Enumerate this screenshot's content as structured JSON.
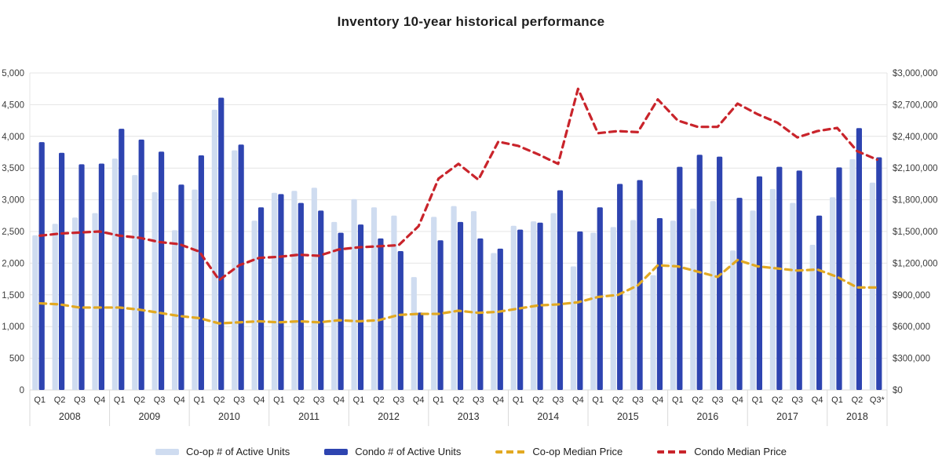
{
  "title": "Inventory 10-year historical performance",
  "legend": [
    {
      "label": "Co-op # of Active Units",
      "type": "bar",
      "color": "#cfdcf0"
    },
    {
      "label": "Condo # of Active Units",
      "type": "bar",
      "color": "#2e44b0"
    },
    {
      "label": "Co-op Median Price",
      "type": "line",
      "color": "#e2a922"
    },
    {
      "label": "Condo Median Price",
      "type": "line",
      "color": "#c9242b"
    }
  ],
  "chart_data": {
    "type": "bar",
    "title": "Inventory 10-year historical performance",
    "grid": true,
    "legend_position": "bottom",
    "years": [
      "2008",
      "2009",
      "2010",
      "2011",
      "2012",
      "2013",
      "2014",
      "2015",
      "2016",
      "2017",
      "2018"
    ],
    "quarters_per_year": [
      4,
      4,
      4,
      4,
      4,
      4,
      4,
      4,
      4,
      4,
      3
    ],
    "quarter_labels": [
      "Q1",
      "Q2",
      "Q3",
      "Q4",
      "Q1",
      "Q2",
      "Q3",
      "Q4",
      "Q1",
      "Q2",
      "Q3",
      "Q4",
      "Q1",
      "Q2",
      "Q3",
      "Q4",
      "Q1",
      "Q2",
      "Q3",
      "Q4",
      "Q1",
      "Q2",
      "Q3",
      "Q4",
      "Q1",
      "Q2",
      "Q3",
      "Q4",
      "Q1",
      "Q2",
      "Q3",
      "Q4",
      "Q1",
      "Q2",
      "Q3",
      "Q4",
      "Q1",
      "Q2",
      "Q3",
      "Q4",
      "Q1",
      "Q2",
      "Q3*"
    ],
    "left_axis": {
      "label": "",
      "min": 0,
      "max": 5000,
      "step": 500,
      "tick_labels": [
        "0",
        "500",
        "1,000",
        "1,500",
        "2,000",
        "2,500",
        "3,000",
        "3,500",
        "4,000",
        "4,500",
        "5,000"
      ]
    },
    "right_axis": {
      "label": "",
      "min": 0,
      "max": 3000000,
      "step": 300000,
      "tick_labels": [
        "$0",
        "$300,000",
        "$600,000",
        "$900,000",
        "$1,200,000",
        "$1,500,000",
        "$1,800,000",
        "$2,100,000",
        "$2,400,000",
        "$2,700,000",
        "$3,000,000"
      ]
    },
    "series": [
      {
        "name": "Co-op # of Active Units",
        "type": "bar",
        "axis": "left",
        "color": "#cfdcf0",
        "values": [
          2440,
          2620,
          2720,
          2790,
          3650,
          3390,
          3120,
          2520,
          3160,
          4420,
          3780,
          2670,
          3110,
          3140,
          3190,
          2650,
          3010,
          2880,
          2750,
          1780,
          2730,
          2900,
          2820,
          2160,
          2590,
          2660,
          2790,
          1950,
          2480,
          2570,
          2680,
          1810,
          2670,
          2860,
          2980,
          2200,
          2830,
          3170,
          2950,
          2290,
          3040,
          3640,
          3270
        ]
      },
      {
        "name": "Condo # of Active Units",
        "type": "bar",
        "axis": "left",
        "color": "#2e44b0",
        "values": [
          3910,
          3740,
          3560,
          3570,
          4120,
          3950,
          3760,
          3240,
          3700,
          4610,
          3870,
          2880,
          3090,
          2950,
          2830,
          2480,
          2610,
          2390,
          2190,
          1220,
          2360,
          2650,
          2390,
          2230,
          2530,
          2640,
          3150,
          2500,
          2880,
          3250,
          3310,
          2710,
          3520,
          3710,
          3680,
          3030,
          3370,
          3520,
          3460,
          2750,
          3510,
          4130,
          3670
        ]
      },
      {
        "name": "Co-op Median Price",
        "type": "line",
        "dashed": true,
        "axis": "right",
        "color": "#e2a922",
        "values": [
          820000,
          810000,
          780000,
          780000,
          780000,
          760000,
          730000,
          700000,
          680000,
          630000,
          640000,
          650000,
          640000,
          650000,
          640000,
          660000,
          650000,
          660000,
          710000,
          720000,
          720000,
          750000,
          730000,
          740000,
          770000,
          800000,
          810000,
          830000,
          880000,
          900000,
          990000,
          1180000,
          1170000,
          1120000,
          1070000,
          1230000,
          1170000,
          1150000,
          1130000,
          1140000,
          1070000,
          970000,
          970000
        ]
      },
      {
        "name": "Condo Median Price",
        "type": "line",
        "dashed": true,
        "axis": "right",
        "color": "#c9242b",
        "values": [
          1460000,
          1480000,
          1490000,
          1500000,
          1460000,
          1440000,
          1400000,
          1380000,
          1310000,
          1040000,
          1180000,
          1250000,
          1260000,
          1280000,
          1270000,
          1330000,
          1350000,
          1360000,
          1370000,
          1550000,
          2000000,
          2140000,
          1990000,
          2350000,
          2310000,
          2230000,
          2140000,
          2850000,
          2430000,
          2450000,
          2440000,
          2750000,
          2550000,
          2490000,
          2490000,
          2710000,
          2610000,
          2530000,
          2390000,
          2450000,
          2480000,
          2260000,
          2180000
        ]
      }
    ]
  },
  "colors": {
    "gridline": "#e4e4e4",
    "axis_line": "#d9d9d9",
    "tick_text": "#3c3c3c"
  }
}
